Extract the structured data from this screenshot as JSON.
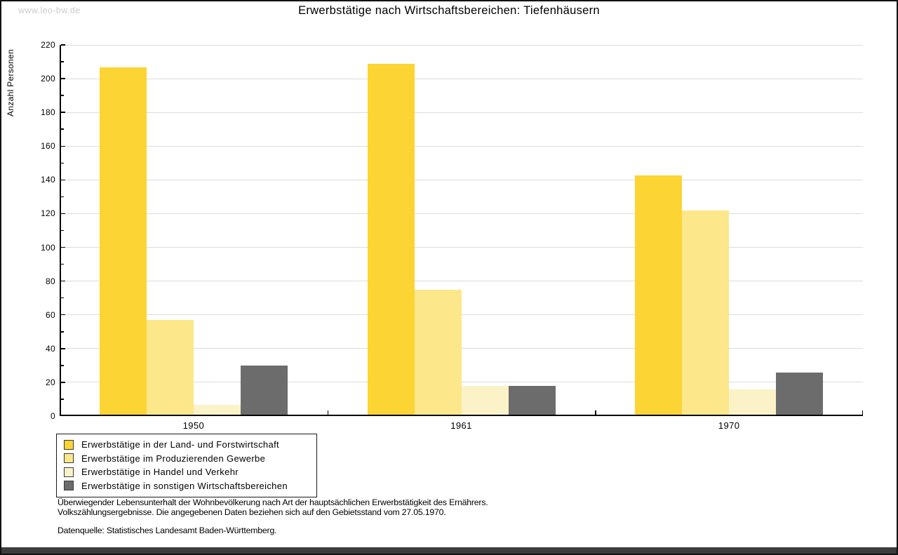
{
  "watermark": "www.leo-bw.de",
  "title": "Erwerbstätige nach Wirtschaftsbereichen: Tiefenhäusern",
  "chart_data": {
    "type": "bar",
    "title": "Erwerbstätige nach Wirtschaftsbereichen: Tiefenhäusern",
    "categories": [
      "1950",
      "1961",
      "1970"
    ],
    "series": [
      {
        "name": "Erwerbstätige in der Land- und Forstwirtschaft",
        "color": "#FCD433",
        "values": [
          206,
          208,
          142
        ]
      },
      {
        "name": "Erwerbstätige im Produzierenden Gewerbe",
        "color": "#FCE78A",
        "values": [
          56,
          74,
          121
        ]
      },
      {
        "name": "Erwerbstätige in Handel und Verkehr",
        "color": "#FBF2C8",
        "values": [
          6,
          17,
          15
        ]
      },
      {
        "name": "Erwerbstätige in sonstigen Wirtschaftsbereichen",
        "color": "#6C6C6C",
        "values": [
          29,
          17,
          25
        ]
      }
    ],
    "xlabel": "",
    "ylabel": "Anzahl Personen",
    "ylim": [
      0,
      220
    ],
    "ytick_step": 20,
    "yticks": [
      0,
      20,
      40,
      60,
      80,
      100,
      120,
      140,
      160,
      180,
      200,
      220
    ],
    "grid": true,
    "gridline_color": "#DCDCDC",
    "legend_position": "bottom-left"
  },
  "footnotes": [
    "Überwiegender Lebensunterhalt der Wohnbevölkerung nach Art der hauptsächlichen Erwerbstätigkeit des Ernährers.",
    "Volkszählungsergebnisse. Die angegebenen Daten beziehen sich auf den Gebietsstand vom 27.05.1970.",
    "Datenquelle: Statistisches Landesamt Baden-Württemberg."
  ]
}
